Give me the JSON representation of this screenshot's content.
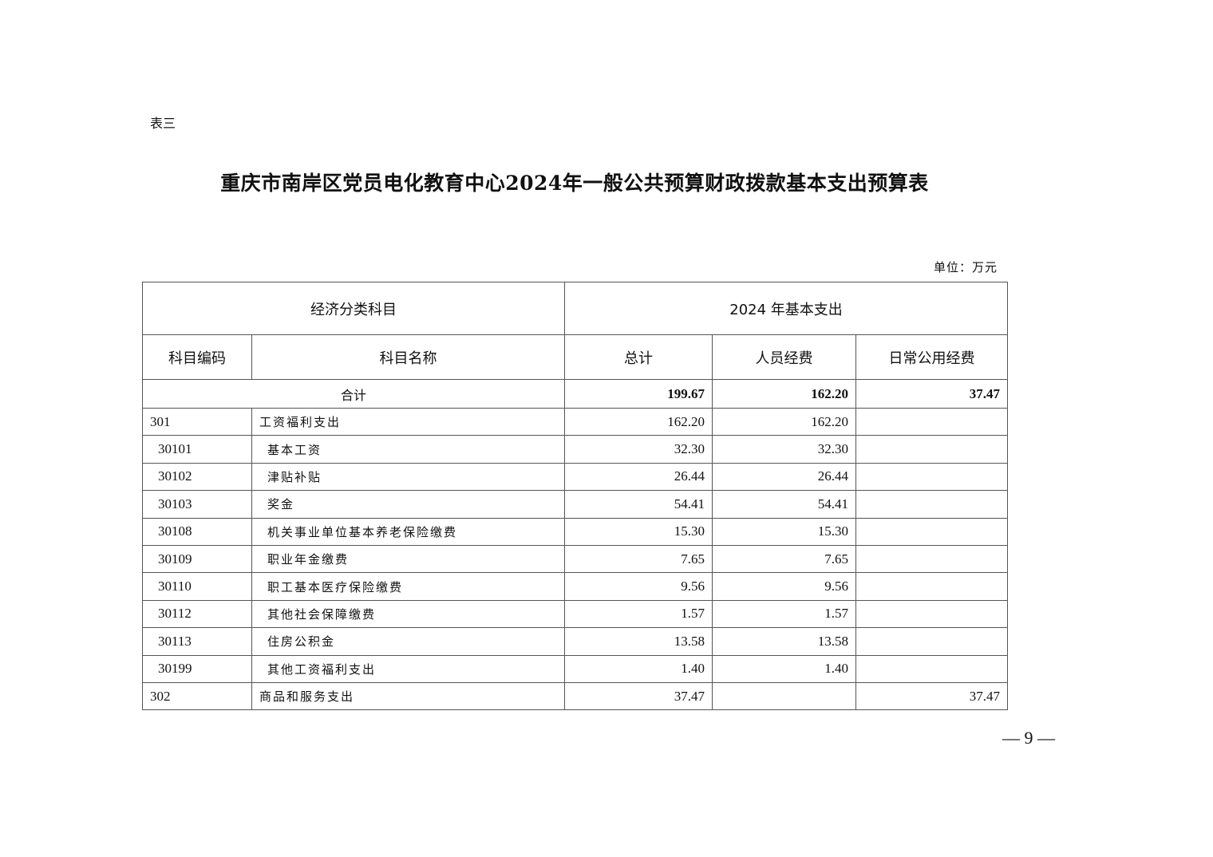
{
  "doc": {
    "label": "表三",
    "title": "重庆市南岸区党员电化教育中心2024年一般公共预算财政拨款基本支出预算表",
    "unit": "单位：万元",
    "page_number": "— 9 —"
  },
  "table": {
    "header_group": {
      "left": "经济分类科目",
      "right": "2024 年基本支出"
    },
    "columns": [
      "科目编码",
      "科目名称",
      "总计",
      "人员经费",
      "日常公用经费"
    ],
    "total": {
      "label": "合计",
      "total": "199.67",
      "personnel": "162.20",
      "public": "37.47"
    },
    "rows": [
      {
        "code": "301",
        "name": "工资福利支出",
        "total": "162.20",
        "personnel": "162.20",
        "public": "",
        "level": 1
      },
      {
        "code": "30101",
        "name": "基本工资",
        "total": "32.30",
        "personnel": "32.30",
        "public": "",
        "level": 2
      },
      {
        "code": "30102",
        "name": "津贴补贴",
        "total": "26.44",
        "personnel": "26.44",
        "public": "",
        "level": 2
      },
      {
        "code": "30103",
        "name": "奖金",
        "total": "54.41",
        "personnel": "54.41",
        "public": "",
        "level": 2
      },
      {
        "code": "30108",
        "name": "机关事业单位基本养老保险缴费",
        "total": "15.30",
        "personnel": "15.30",
        "public": "",
        "level": 2
      },
      {
        "code": "30109",
        "name": "职业年金缴费",
        "total": "7.65",
        "personnel": "7.65",
        "public": "",
        "level": 2
      },
      {
        "code": "30110",
        "name": "职工基本医疗保险缴费",
        "total": "9.56",
        "personnel": "9.56",
        "public": "",
        "level": 2
      },
      {
        "code": "30112",
        "name": "其他社会保障缴费",
        "total": "1.57",
        "personnel": "1.57",
        "public": "",
        "level": 2
      },
      {
        "code": "30113",
        "name": "住房公积金",
        "total": "13.58",
        "personnel": "13.58",
        "public": "",
        "level": 2
      },
      {
        "code": "30199",
        "name": "其他工资福利支出",
        "total": "1.40",
        "personnel": "1.40",
        "public": "",
        "level": 2
      },
      {
        "code": "302",
        "name": "商品和服务支出",
        "total": "37.47",
        "personnel": "",
        "public": "37.47",
        "level": 1
      }
    ]
  }
}
